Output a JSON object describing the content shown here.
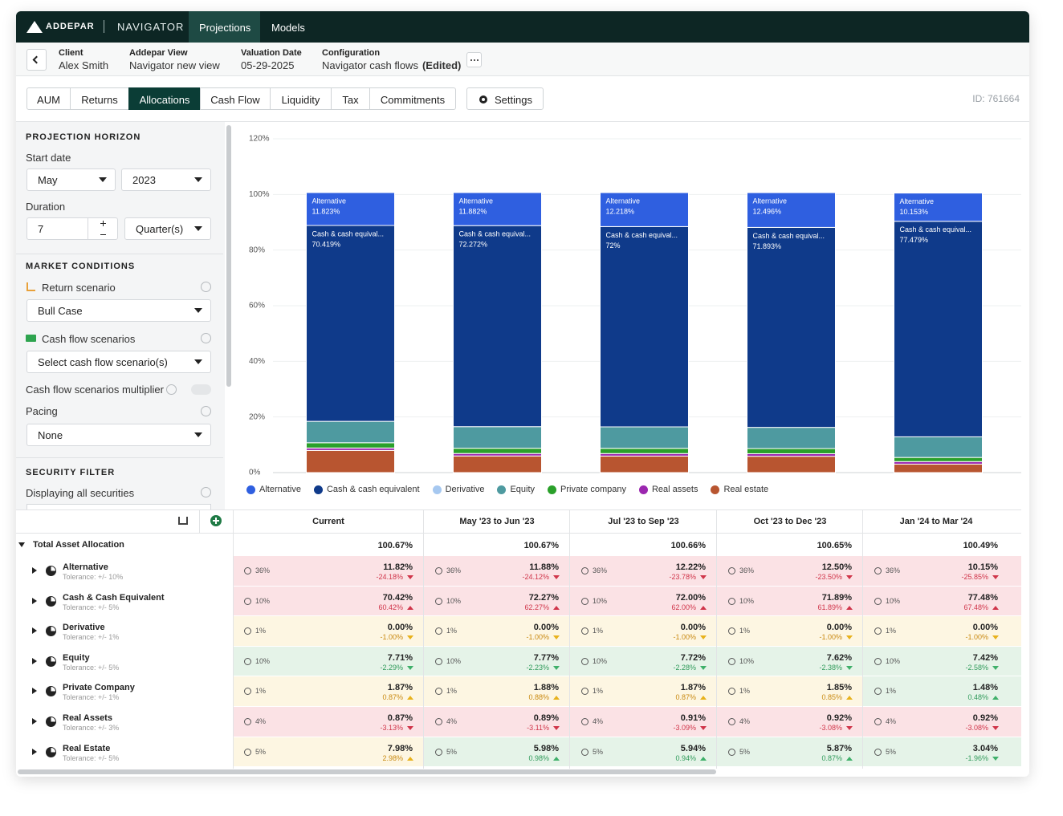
{
  "nav": {
    "brand": "ADDEPAR",
    "product": "NAVIGATOR",
    "items": [
      "Projections",
      "Models"
    ]
  },
  "header": {
    "fields": [
      {
        "label": "Client",
        "value": "Alex Smith"
      },
      {
        "label": "Addepar View",
        "value": "Navigator new view"
      },
      {
        "label": "Valuation Date",
        "value": "05-29-2025"
      },
      {
        "label": "Configuration",
        "value": "Navigator cash flows",
        "note": "(Edited)"
      }
    ]
  },
  "tabs": {
    "items": [
      "AUM",
      "Returns",
      "Allocations",
      "Cash Flow",
      "Liquidity",
      "Tax",
      "Commitments"
    ],
    "active": 2,
    "settings": "Settings",
    "id": "ID: 761664"
  },
  "sidebar": {
    "projection_horizon": {
      "title": "PROJECTION HORIZON",
      "start_label": "Start date",
      "month": "May",
      "year": "2023",
      "duration_label": "Duration",
      "duration": "7",
      "unit": "Quarter(s)"
    },
    "market_conditions": {
      "title": "MARKET CONDITIONS",
      "return_label": "Return scenario",
      "return_value": "Bull Case",
      "cash_label": "Cash flow scenarios",
      "cash_value": "Select cash flow scenario(s)",
      "multiplier_label": "Cash flow scenarios multiplier",
      "pacing_label": "Pacing",
      "pacing_value": "None"
    },
    "security_filter": {
      "title": "SECURITY FILTER",
      "text": "Displaying all securities"
    }
  },
  "chart_data": {
    "type": "bar",
    "stacked": true,
    "categories": [
      null,
      null,
      null,
      null,
      null
    ],
    "ylim": [
      0,
      120
    ],
    "yticks": [
      {
        "value": 0,
        "label": "0%"
      },
      {
        "value": 20,
        "label": "20%"
      },
      {
        "value": 40,
        "label": "40%"
      },
      {
        "value": 60,
        "label": "60%"
      },
      {
        "value": 80,
        "label": "80%"
      },
      {
        "value": 100,
        "label": "100%"
      },
      {
        "value": 120,
        "label": "120%"
      }
    ],
    "grid": true,
    "series": [
      {
        "name": "Alternative",
        "color": "#2f5fe0",
        "values": [
          11.823,
          11.882,
          12.218,
          12.496,
          10.153
        ],
        "value_labels": [
          "11.823%",
          "11.882%",
          "12.218%",
          "12.496%",
          "10.153%"
        ]
      },
      {
        "name": "Cash & cash equivalent",
        "label": "Cash & cash equival...",
        "color": "#0f3a8a",
        "values": [
          70.419,
          72.272,
          72,
          71.893,
          77.479
        ],
        "value_labels": [
          "70.419%",
          "72.272%",
          "72%",
          "71.893%",
          "77.479%"
        ]
      },
      {
        "name": "Derivative",
        "color": "#a6c8f0",
        "values": [
          0,
          0,
          0,
          0,
          0
        ]
      },
      {
        "name": "Equity",
        "color": "#4e9aa0",
        "values": [
          7.71,
          7.77,
          7.72,
          7.62,
          7.42
        ]
      },
      {
        "name": "Private company",
        "color": "#2aa02a",
        "values": [
          1.87,
          1.88,
          1.87,
          1.85,
          1.48
        ]
      },
      {
        "name": "Real assets",
        "color": "#9b27af",
        "values": [
          0.87,
          0.89,
          0.91,
          0.92,
          0.92
        ]
      },
      {
        "name": "Real estate",
        "color": "#b85530",
        "values": [
          7.98,
          5.98,
          5.94,
          5.87,
          3.04
        ]
      }
    ]
  },
  "table": {
    "columns": [
      "Current",
      "May '23 to Jun '23",
      "Jul '23 to Sep '23",
      "Oct '23 to Dec '23",
      "Jan '24 to Mar '24"
    ],
    "total": {
      "label": "Total Asset Allocation",
      "values": [
        "100.67%",
        "100.67%",
        "100.66%",
        "100.65%",
        "100.49%"
      ]
    },
    "rows": [
      {
        "name": "Alternative",
        "tolerance": "Tolerance: +/- 10%",
        "cells": [
          {
            "target": "36%",
            "value": "11.82%",
            "diff": "-24.18%",
            "status": "red"
          },
          {
            "target": "36%",
            "value": "11.88%",
            "diff": "-24.12%",
            "status": "red"
          },
          {
            "target": "36%",
            "value": "12.22%",
            "diff": "-23.78%",
            "status": "red"
          },
          {
            "target": "36%",
            "value": "12.50%",
            "diff": "-23.50%",
            "status": "red"
          },
          {
            "target": "36%",
            "value": "10.15%",
            "diff": "-25.85%",
            "status": "red"
          }
        ]
      },
      {
        "name": "Cash & Cash Equivalent",
        "tolerance": "Tolerance: +/- 5%",
        "cells": [
          {
            "target": "10%",
            "value": "70.42%",
            "diff": "60.42%",
            "status": "red"
          },
          {
            "target": "10%",
            "value": "72.27%",
            "diff": "62.27%",
            "status": "red"
          },
          {
            "target": "10%",
            "value": "72.00%",
            "diff": "62.00%",
            "status": "red"
          },
          {
            "target": "10%",
            "value": "71.89%",
            "diff": "61.89%",
            "status": "red"
          },
          {
            "target": "10%",
            "value": "77.48%",
            "diff": "67.48%",
            "status": "red"
          }
        ]
      },
      {
        "name": "Derivative",
        "tolerance": "Tolerance: +/- 1%",
        "cells": [
          {
            "target": "1%",
            "value": "0.00%",
            "diff": "-1.00%",
            "status": "yellow"
          },
          {
            "target": "1%",
            "value": "0.00%",
            "diff": "-1.00%",
            "status": "yellow"
          },
          {
            "target": "1%",
            "value": "0.00%",
            "diff": "-1.00%",
            "status": "yellow"
          },
          {
            "target": "1%",
            "value": "0.00%",
            "diff": "-1.00%",
            "status": "yellow"
          },
          {
            "target": "1%",
            "value": "0.00%",
            "diff": "-1.00%",
            "status": "yellow"
          }
        ]
      },
      {
        "name": "Equity",
        "tolerance": "Tolerance: +/- 5%",
        "cells": [
          {
            "target": "10%",
            "value": "7.71%",
            "diff": "-2.29%",
            "status": "green"
          },
          {
            "target": "10%",
            "value": "7.77%",
            "diff": "-2.23%",
            "status": "green"
          },
          {
            "target": "10%",
            "value": "7.72%",
            "diff": "-2.28%",
            "status": "green"
          },
          {
            "target": "10%",
            "value": "7.62%",
            "diff": "-2.38%",
            "status": "green"
          },
          {
            "target": "10%",
            "value": "7.42%",
            "diff": "-2.58%",
            "status": "green"
          }
        ]
      },
      {
        "name": "Private Company",
        "tolerance": "Tolerance: +/- 1%",
        "cells": [
          {
            "target": "1%",
            "value": "1.87%",
            "diff": "0.87%",
            "status": "yellow"
          },
          {
            "target": "1%",
            "value": "1.88%",
            "diff": "0.88%",
            "status": "yellow"
          },
          {
            "target": "1%",
            "value": "1.87%",
            "diff": "0.87%",
            "status": "yellow"
          },
          {
            "target": "1%",
            "value": "1.85%",
            "diff": "0.85%",
            "status": "yellow"
          },
          {
            "target": "1%",
            "value": "1.48%",
            "diff": "0.48%",
            "status": "green"
          }
        ]
      },
      {
        "name": "Real Assets",
        "tolerance": "Tolerance: +/- 3%",
        "cells": [
          {
            "target": "4%",
            "value": "0.87%",
            "diff": "-3.13%",
            "status": "red"
          },
          {
            "target": "4%",
            "value": "0.89%",
            "diff": "-3.11%",
            "status": "red"
          },
          {
            "target": "4%",
            "value": "0.91%",
            "diff": "-3.09%",
            "status": "red"
          },
          {
            "target": "4%",
            "value": "0.92%",
            "diff": "-3.08%",
            "status": "red"
          },
          {
            "target": "4%",
            "value": "0.92%",
            "diff": "-3.08%",
            "status": "red"
          }
        ]
      },
      {
        "name": "Real Estate",
        "tolerance": "Tolerance: +/- 5%",
        "cells": [
          {
            "target": "5%",
            "value": "7.98%",
            "diff": "2.98%",
            "status": "yellow"
          },
          {
            "target": "5%",
            "value": "5.98%",
            "diff": "0.98%",
            "status": "green"
          },
          {
            "target": "5%",
            "value": "5.94%",
            "diff": "0.94%",
            "status": "green"
          },
          {
            "target": "5%",
            "value": "5.87%",
            "diff": "0.87%",
            "status": "green"
          },
          {
            "target": "5%",
            "value": "3.04%",
            "diff": "-1.96%",
            "status": "green"
          }
        ]
      }
    ]
  }
}
